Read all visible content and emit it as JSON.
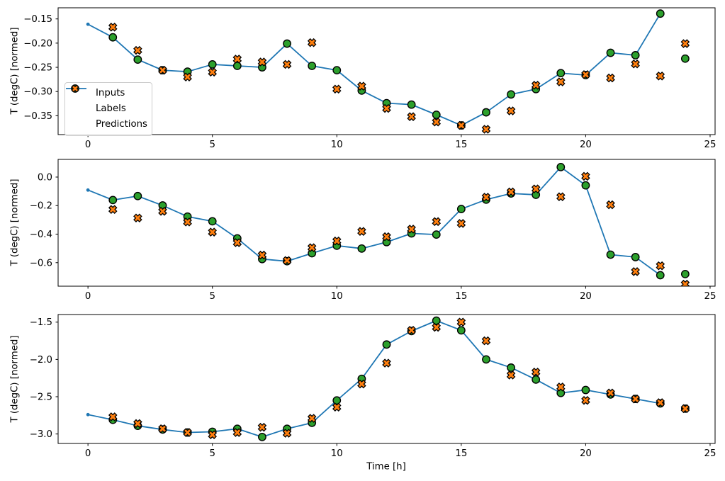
{
  "colors": {
    "inputs": "#1f77b4",
    "labels": "#2ca02c",
    "predictions": "#ff7f0e",
    "marker_edge": "#000000",
    "axis": "#000000",
    "legend_border": "#cccccc",
    "background": "#ffffff"
  },
  "legend": {
    "location": "center left of top panel",
    "entries": [
      "Inputs",
      "Labels",
      "Predictions"
    ]
  },
  "chart_data": [
    {
      "type": "line",
      "panel": "top",
      "ylabel": "T (degC) [normed]",
      "xlabel": "",
      "grid": false,
      "xlim": [
        -1.2,
        25.2
      ],
      "ylim": [
        -0.389,
        -0.127
      ],
      "xticks": [
        0,
        5,
        10,
        15,
        20,
        25
      ],
      "xtick_labels": [
        "0",
        "5",
        "10",
        "15",
        "20",
        "25"
      ],
      "yticks": [
        -0.15,
        -0.2,
        -0.25,
        -0.3,
        -0.35
      ],
      "ytick_labels": [
        "−0.15",
        "−0.20",
        "−0.25",
        "−0.30",
        "−0.35"
      ],
      "series": [
        {
          "name": "Inputs",
          "style": "line-with-dots",
          "x": [
            0,
            1,
            2,
            3,
            4,
            5,
            6,
            7,
            8,
            9,
            10,
            11,
            12,
            13,
            14,
            15,
            16,
            17,
            18,
            19,
            20,
            21,
            22,
            23
          ],
          "y": [
            -0.161,
            -0.188,
            -0.234,
            -0.256,
            -0.259,
            -0.244,
            -0.247,
            -0.25,
            -0.201,
            -0.247,
            -0.256,
            -0.298,
            -0.324,
            -0.327,
            -0.348,
            -0.37,
            -0.343,
            -0.306,
            -0.295,
            -0.262,
            -0.266,
            -0.22,
            -0.225,
            -0.139
          ]
        },
        {
          "name": "Labels",
          "style": "circle-markers",
          "x": [
            1,
            2,
            3,
            4,
            5,
            6,
            7,
            8,
            9,
            10,
            11,
            12,
            13,
            14,
            15,
            16,
            17,
            18,
            19,
            20,
            21,
            22,
            23,
            24
          ],
          "y": [
            -0.188,
            -0.234,
            -0.256,
            -0.259,
            -0.244,
            -0.247,
            -0.25,
            -0.201,
            -0.247,
            -0.256,
            -0.298,
            -0.324,
            -0.327,
            -0.348,
            -0.37,
            -0.343,
            -0.306,
            -0.295,
            -0.262,
            -0.266,
            -0.22,
            -0.225,
            -0.139,
            -0.232
          ]
        },
        {
          "name": "Predictions",
          "style": "x-markers",
          "x": [
            1,
            2,
            3,
            4,
            5,
            6,
            7,
            8,
            9,
            10,
            11,
            12,
            13,
            14,
            15,
            16,
            17,
            18,
            19,
            20,
            21,
            22,
            23,
            24
          ],
          "y": [
            -0.167,
            -0.215,
            -0.256,
            -0.27,
            -0.26,
            -0.233,
            -0.239,
            -0.244,
            -0.199,
            -0.295,
            -0.289,
            -0.335,
            -0.352,
            -0.363,
            -0.37,
            -0.378,
            -0.34,
            -0.287,
            -0.28,
            -0.265,
            -0.272,
            -0.243,
            -0.268,
            -0.201
          ]
        }
      ]
    },
    {
      "type": "line",
      "panel": "middle",
      "ylabel": "T (degC) [normed]",
      "xlabel": "",
      "grid": false,
      "xlim": [
        -1.2,
        25.2
      ],
      "ylim": [
        -0.765,
        0.124
      ],
      "xticks": [
        0,
        5,
        10,
        15,
        20,
        25
      ],
      "xtick_labels": [
        "0",
        "5",
        "10",
        "15",
        "20",
        "25"
      ],
      "yticks": [
        0.0,
        -0.2,
        -0.4,
        -0.6
      ],
      "ytick_labels": [
        "0.0",
        "−0.2",
        "−0.4",
        "−0.6"
      ],
      "series": [
        {
          "name": "Inputs",
          "style": "line-with-dots",
          "x": [
            0,
            1,
            2,
            3,
            4,
            5,
            6,
            7,
            8,
            9,
            10,
            11,
            12,
            13,
            14,
            15,
            16,
            17,
            18,
            19,
            20,
            21,
            22,
            23
          ],
          "y": [
            -0.091,
            -0.161,
            -0.133,
            -0.199,
            -0.277,
            -0.31,
            -0.43,
            -0.575,
            -0.59,
            -0.534,
            -0.481,
            -0.501,
            -0.456,
            -0.395,
            -0.403,
            -0.224,
            -0.158,
            -0.115,
            -0.124,
            0.07,
            -0.058,
            -0.544,
            -0.561,
            -0.688
          ]
        },
        {
          "name": "Labels",
          "style": "circle-markers",
          "x": [
            1,
            2,
            3,
            4,
            5,
            6,
            7,
            8,
            9,
            10,
            11,
            12,
            13,
            14,
            15,
            16,
            17,
            18,
            19,
            20,
            21,
            22,
            23,
            24
          ],
          "y": [
            -0.161,
            -0.133,
            -0.199,
            -0.277,
            -0.31,
            -0.43,
            -0.575,
            -0.59,
            -0.534,
            -0.481,
            -0.501,
            -0.456,
            -0.395,
            -0.403,
            -0.224,
            -0.158,
            -0.115,
            -0.124,
            0.07,
            -0.058,
            -0.544,
            -0.561,
            -0.688,
            -0.68
          ]
        },
        {
          "name": "Predictions",
          "style": "x-markers",
          "x": [
            1,
            2,
            3,
            4,
            5,
            6,
            7,
            8,
            9,
            10,
            11,
            12,
            13,
            14,
            15,
            16,
            17,
            18,
            19,
            20,
            21,
            22,
            23,
            24
          ],
          "y": [
            -0.227,
            -0.287,
            -0.24,
            -0.315,
            -0.386,
            -0.46,
            -0.547,
            -0.585,
            -0.495,
            -0.448,
            -0.381,
            -0.418,
            -0.365,
            -0.312,
            -0.325,
            -0.141,
            -0.104,
            -0.083,
            -0.138,
            0.005,
            -0.194,
            -0.663,
            -0.622,
            -0.751
          ]
        }
      ]
    },
    {
      "type": "line",
      "panel": "bottom",
      "ylabel": "T (degC) [normed]",
      "xlabel": "Time [h]",
      "grid": false,
      "xlim": [
        -1.2,
        25.2
      ],
      "ylim": [
        -3.127,
        -1.398
      ],
      "xticks": [
        0,
        5,
        10,
        15,
        20,
        25
      ],
      "xtick_labels": [
        "0",
        "5",
        "10",
        "15",
        "20",
        "25"
      ],
      "yticks": [
        -1.5,
        -2.0,
        -2.5,
        -3.0
      ],
      "ytick_labels": [
        "−1.5",
        "−2.0",
        "−2.5",
        "−3.0"
      ],
      "series": [
        {
          "name": "Inputs",
          "style": "line-with-dots",
          "x": [
            0,
            1,
            2,
            3,
            4,
            5,
            6,
            7,
            8,
            9,
            10,
            11,
            12,
            13,
            14,
            15,
            16,
            17,
            18,
            19,
            20,
            21,
            22,
            23
          ],
          "y": [
            -2.74,
            -2.81,
            -2.89,
            -2.94,
            -2.98,
            -2.97,
            -2.93,
            -3.04,
            -2.93,
            -2.85,
            -2.55,
            -2.26,
            -1.8,
            -1.62,
            -1.48,
            -1.61,
            -2.0,
            -2.11,
            -2.27,
            -2.45,
            -2.41,
            -2.47,
            -2.53,
            -2.59
          ]
        },
        {
          "name": "Labels",
          "style": "circle-markers",
          "x": [
            1,
            2,
            3,
            4,
            5,
            6,
            7,
            8,
            9,
            10,
            11,
            12,
            13,
            14,
            15,
            16,
            17,
            18,
            19,
            20,
            21,
            22,
            23,
            24
          ],
          "y": [
            -2.81,
            -2.89,
            -2.94,
            -2.98,
            -2.97,
            -2.93,
            -3.04,
            -2.93,
            -2.85,
            -2.55,
            -2.26,
            -1.8,
            -1.62,
            -1.48,
            -1.61,
            -2.0,
            -2.11,
            -2.27,
            -2.45,
            -2.41,
            -2.47,
            -2.53,
            -2.59,
            -2.66
          ]
        },
        {
          "name": "Predictions",
          "style": "x-markers",
          "x": [
            1,
            2,
            3,
            4,
            5,
            6,
            7,
            8,
            9,
            10,
            11,
            12,
            13,
            14,
            15,
            16,
            17,
            18,
            19,
            20,
            21,
            22,
            23,
            24
          ],
          "y": [
            -2.77,
            -2.86,
            -2.93,
            -2.98,
            -3.01,
            -2.98,
            -2.91,
            -2.99,
            -2.79,
            -2.64,
            -2.33,
            -2.05,
            -1.61,
            -1.57,
            -1.5,
            -1.75,
            -2.21,
            -2.17,
            -2.37,
            -2.55,
            -2.45,
            -2.53,
            -2.58,
            -2.66
          ]
        }
      ]
    }
  ]
}
